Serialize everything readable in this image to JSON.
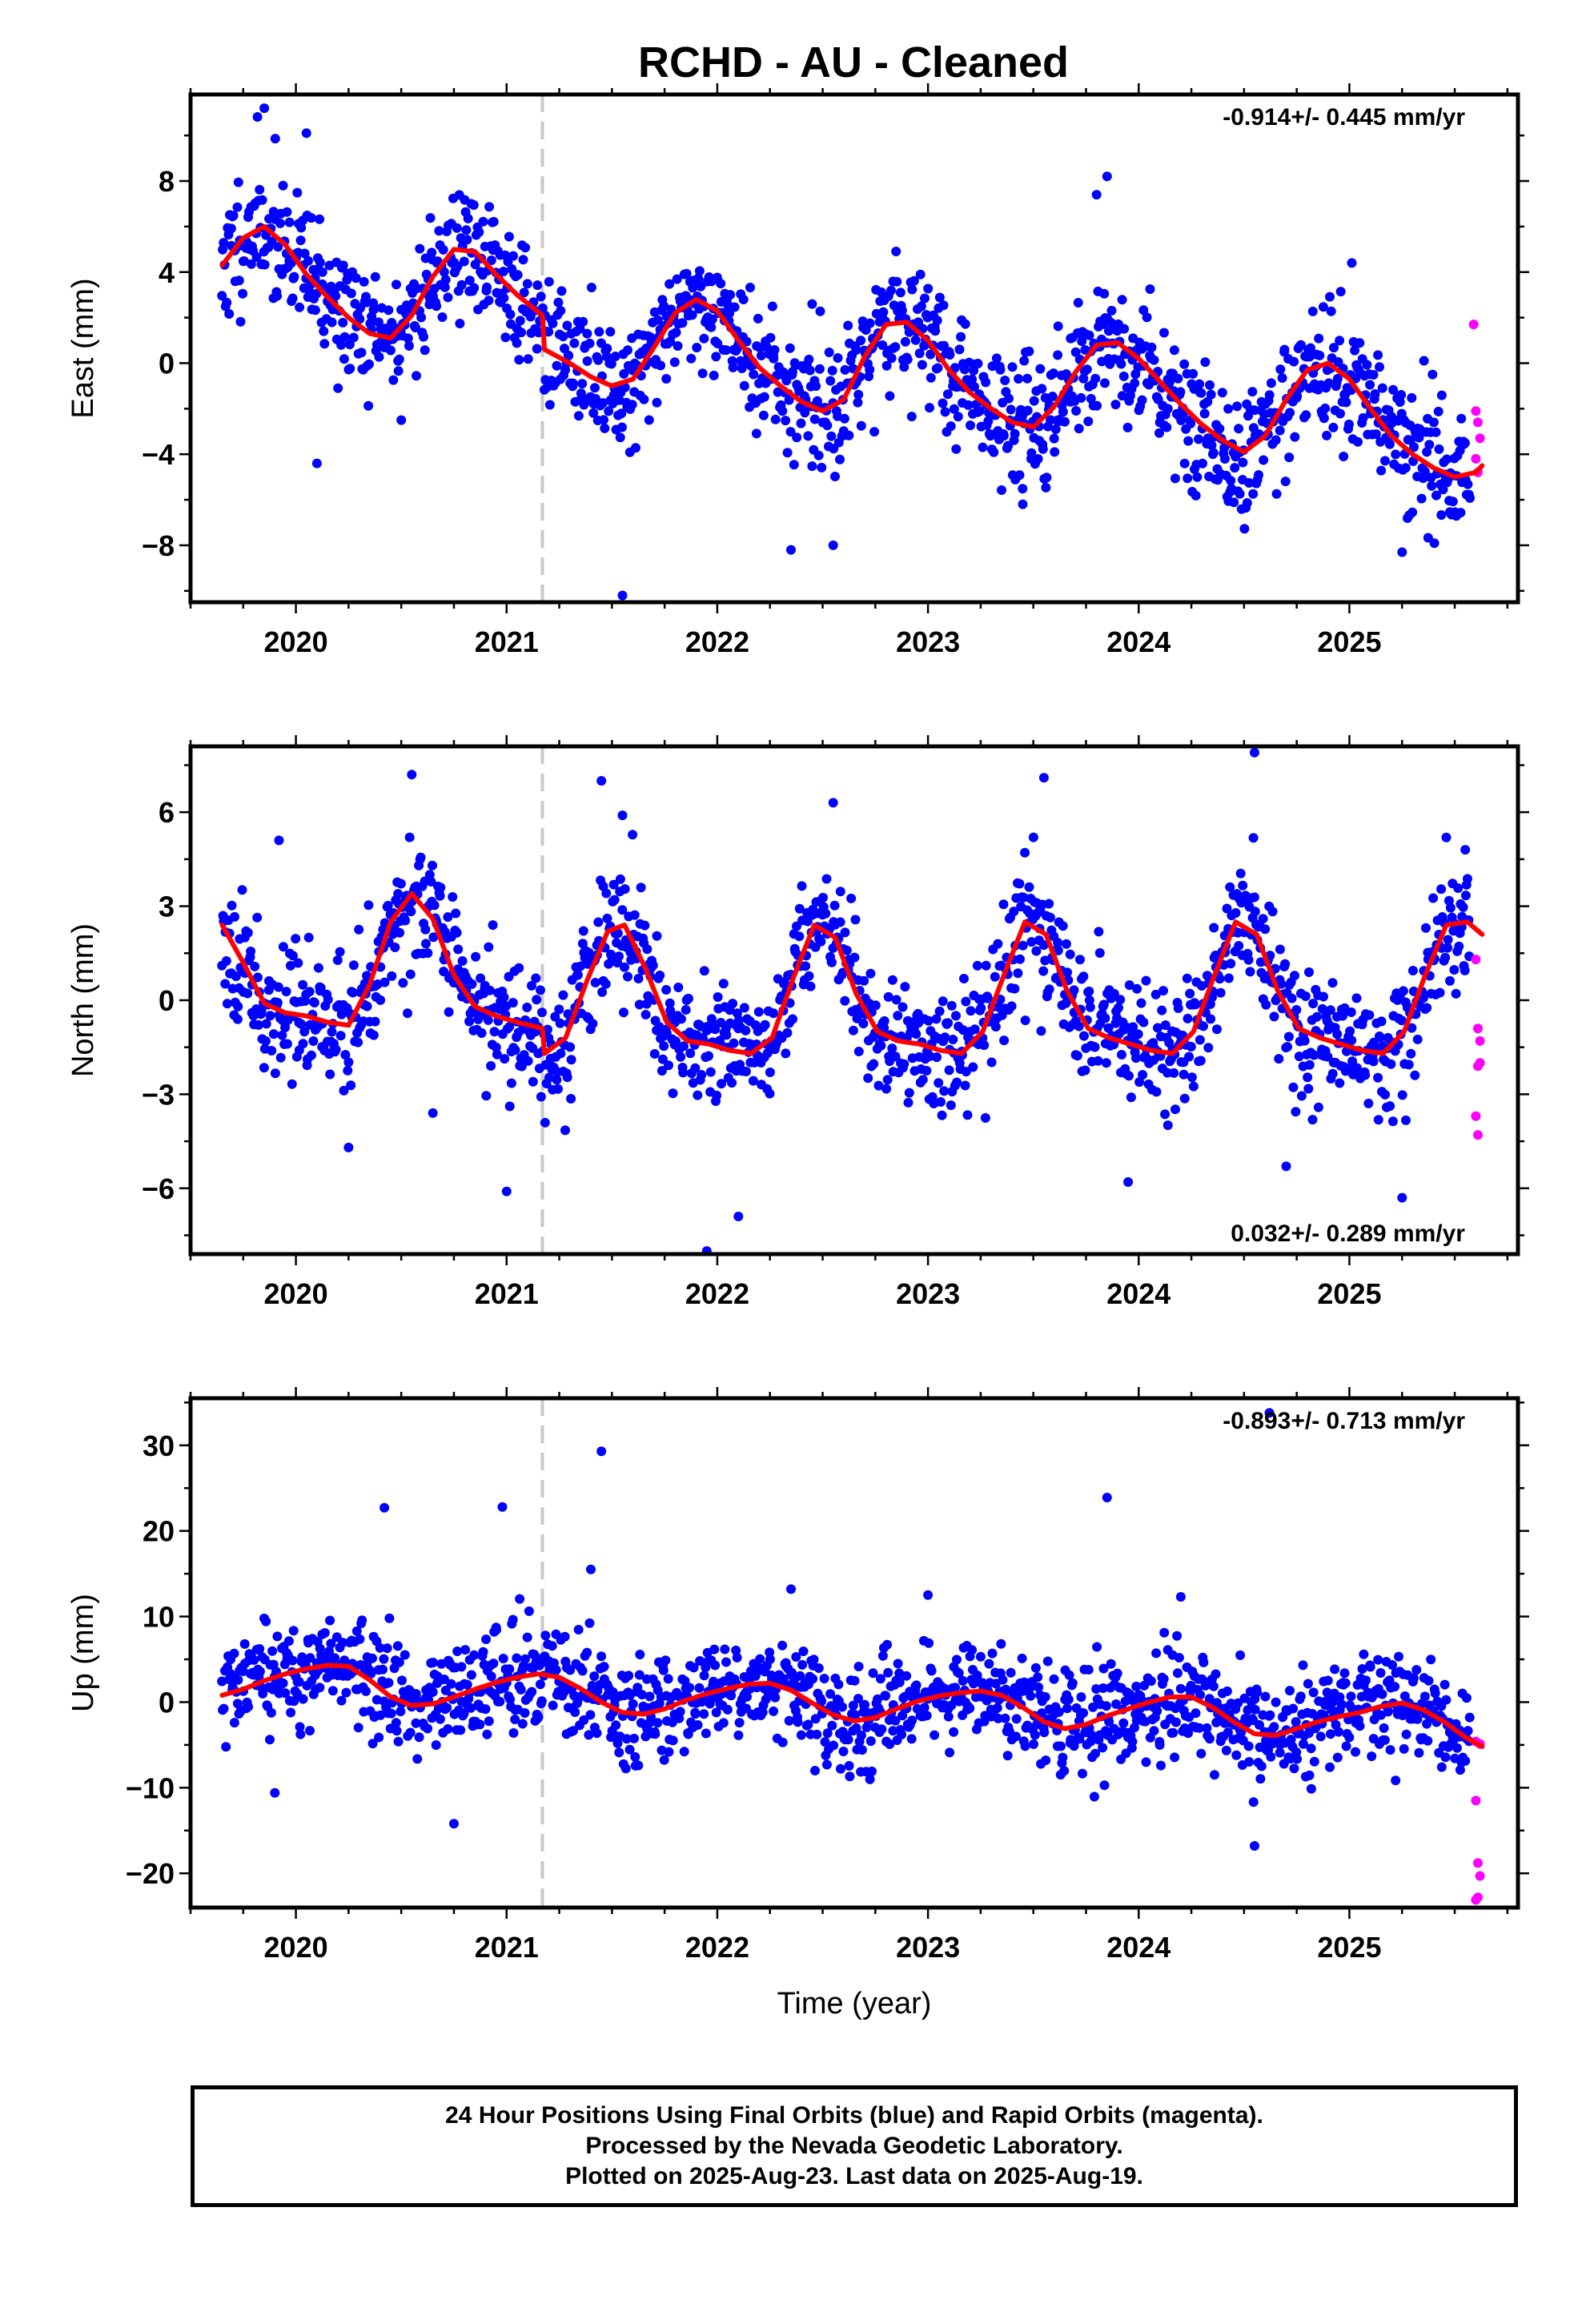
{
  "title": "RCHD  - AU - Cleaned",
  "colors": {
    "final_orbits": "#0000ff",
    "rapid_orbits": "#ff00ff",
    "model": "#ff0000",
    "event_line": "#c8c8c8"
  },
  "footer": {
    "lines": [
      "24 Hour Positions Using Final Orbits (blue) and Rapid Orbits (magenta).",
      "Processed by the Nevada Geodetic Laboratory.",
      "Plotted on 2025-Aug-23. Last data on 2025-Aug-19."
    ]
  },
  "chart_data": [
    {
      "type": "scatter",
      "panel": "east",
      "ylabel": "East (mm)",
      "xlabel": "",
      "rate_label": "-0.914+/- 0.445 mm/yr",
      "rate_label_position": "top-right",
      "xlim": [
        2019.5,
        2025.8
      ],
      "ylim": [
        -10.5,
        11.8
      ],
      "x_ticks": [
        2020,
        2021,
        2022,
        2023,
        2024,
        2025
      ],
      "y_ticks": [
        -8,
        -4,
        0,
        4,
        8
      ],
      "y_tick_labels": [
        "−8",
        "−4",
        "0",
        "4",
        "8"
      ],
      "event_line_x": 2021.17,
      "grid": false,
      "model_curve": {
        "name": "model",
        "x": [
          2019.65,
          2019.75,
          2019.85,
          2019.95,
          2020.05,
          2020.15,
          2020.25,
          2020.35,
          2020.45,
          2020.55,
          2020.65,
          2020.75,
          2020.85,
          2020.95,
          2021.05,
          2021.17,
          2021.18,
          2021.3,
          2021.4,
          2021.5,
          2021.6,
          2021.7,
          2021.8,
          2021.9,
          2022.0,
          2022.1,
          2022.2,
          2022.3,
          2022.4,
          2022.5,
          2022.6,
          2022.7,
          2022.8,
          2022.9,
          2023.0,
          2023.1,
          2023.2,
          2023.3,
          2023.4,
          2023.5,
          2023.6,
          2023.7,
          2023.8,
          2023.9,
          2024.0,
          2024.1,
          2024.2,
          2024.3,
          2024.4,
          2024.5,
          2024.6,
          2024.7,
          2024.8,
          2024.9,
          2025.0,
          2025.1,
          2025.2,
          2025.3,
          2025.4,
          2025.5,
          2025.6,
          2025.63
        ],
        "y": [
          4.3,
          5.5,
          6.0,
          5.2,
          3.9,
          2.9,
          2.0,
          1.3,
          1.1,
          2.1,
          3.8,
          5.0,
          4.9,
          3.9,
          3.0,
          2.1,
          0.6,
          0.0,
          -0.6,
          -1.0,
          -0.7,
          0.7,
          2.2,
          2.8,
          2.3,
          1.0,
          -0.2,
          -1.0,
          -1.7,
          -2.1,
          -1.6,
          0.3,
          1.7,
          1.8,
          1.0,
          -0.3,
          -1.3,
          -2.0,
          -2.6,
          -2.8,
          -1.9,
          -0.4,
          0.8,
          0.9,
          0.2,
          -0.8,
          -1.8,
          -2.7,
          -3.4,
          -3.9,
          -3.2,
          -1.6,
          -0.3,
          0.0,
          -0.7,
          -2.0,
          -3.2,
          -4.0,
          -4.6,
          -5.0,
          -4.8,
          -4.5
        ]
      },
      "rapid_points": {
        "x": [
          2025.59,
          2025.6,
          2025.61,
          2025.62,
          2025.6,
          2025.61
        ],
        "y": [
          1.7,
          -2.1,
          -2.6,
          -3.3,
          -4.2,
          -4.8
        ]
      },
      "scatter_generation": {
        "x_start": 2019.65,
        "x_end": 2025.57,
        "count": 1400,
        "noise_sd": 1.4,
        "seed": 11,
        "outliers": [
          [
            2019.85,
            11.2
          ],
          [
            2020.05,
            10.1
          ],
          [
            2020.1,
            -4.4
          ],
          [
            2021.55,
            -10.2
          ],
          [
            2022.35,
            -8.2
          ],
          [
            2022.55,
            -8.0
          ],
          [
            2023.8,
            7.4
          ],
          [
            2023.85,
            8.2
          ],
          [
            2025.25,
            -8.3
          ],
          [
            2020.5,
            -2.5
          ],
          [
            2022.45,
            2.6
          ],
          [
            2023.45,
            -6.2
          ]
        ]
      }
    },
    {
      "type": "scatter",
      "panel": "north",
      "ylabel": "North (mm)",
      "xlabel": "",
      "rate_label": "0.032+/- 0.289 mm/yr",
      "rate_label_position": "bottom-right",
      "xlim": [
        2019.5,
        2025.8
      ],
      "ylim": [
        -8.1,
        8.1
      ],
      "x_ticks": [
        2020,
        2021,
        2022,
        2023,
        2024,
        2025
      ],
      "y_ticks": [
        -6,
        -3,
        0,
        3,
        6
      ],
      "y_tick_labels": [
        "−6",
        "−3",
        "0",
        "3",
        "6"
      ],
      "event_line_x": 2021.17,
      "grid": false,
      "model_curve": {
        "name": "model",
        "x": [
          2019.65,
          2019.75,
          2019.85,
          2019.95,
          2020.05,
          2020.15,
          2020.25,
          2020.35,
          2020.45,
          2020.55,
          2020.65,
          2020.75,
          2020.85,
          2020.95,
          2021.05,
          2021.17,
          2021.18,
          2021.28,
          2021.38,
          2021.48,
          2021.56,
          2021.66,
          2021.76,
          2021.86,
          2021.96,
          2022.06,
          2022.16,
          2022.26,
          2022.36,
          2022.46,
          2022.56,
          2022.66,
          2022.76,
          2022.86,
          2022.96,
          2023.06,
          2023.16,
          2023.26,
          2023.36,
          2023.46,
          2023.56,
          2023.66,
          2023.76,
          2023.86,
          2023.96,
          2024.06,
          2024.16,
          2024.26,
          2024.36,
          2024.46,
          2024.56,
          2024.66,
          2024.76,
          2024.86,
          2024.96,
          2025.06,
          2025.16,
          2025.26,
          2025.36,
          2025.46,
          2025.56,
          2025.63
        ],
        "y": [
          2.4,
          1.2,
          -0.1,
          -0.4,
          -0.5,
          -0.7,
          -0.8,
          0.5,
          2.5,
          3.4,
          2.6,
          0.8,
          -0.2,
          -0.5,
          -0.7,
          -0.9,
          -1.7,
          -1.2,
          0.6,
          2.2,
          2.4,
          1.0,
          -0.7,
          -1.3,
          -1.4,
          -1.6,
          -1.7,
          -1.2,
          0.7,
          2.4,
          2.0,
          0.2,
          -1.0,
          -1.3,
          -1.4,
          -1.6,
          -1.7,
          -1.0,
          0.8,
          2.5,
          2.1,
          0.3,
          -0.9,
          -1.2,
          -1.4,
          -1.6,
          -1.7,
          -1.0,
          0.8,
          2.5,
          2.1,
          0.3,
          -0.9,
          -1.2,
          -1.4,
          -1.6,
          -1.7,
          -1.0,
          0.8,
          2.4,
          2.5,
          2.1
        ]
      },
      "rapid_points": {
        "x": [
          2025.6,
          2025.61,
          2025.62,
          2025.61,
          2025.62,
          2025.6,
          2025.61
        ],
        "y": [
          1.3,
          -0.9,
          -1.3,
          -2.1,
          -2.0,
          -3.7,
          -4.3
        ]
      },
      "scatter_generation": {
        "x_start": 2019.65,
        "x_end": 2025.57,
        "count": 1400,
        "noise_sd": 1.0,
        "seed": 23,
        "outliers": [
          [
            2019.92,
            5.1
          ],
          [
            2020.25,
            -4.7
          ],
          [
            2020.55,
            7.2
          ],
          [
            2021.0,
            -6.1
          ],
          [
            2021.45,
            7.0
          ],
          [
            2021.55,
            5.9
          ],
          [
            2021.95,
            -8.0
          ],
          [
            2022.1,
            -6.9
          ],
          [
            2022.55,
            6.3
          ],
          [
            2023.55,
            7.1
          ],
          [
            2023.95,
            -5.8
          ],
          [
            2024.55,
            7.9
          ],
          [
            2024.7,
            -5.3
          ],
          [
            2025.25,
            -6.3
          ],
          [
            2025.55,
            4.8
          ],
          [
            2020.65,
            -3.6
          ]
        ]
      }
    },
    {
      "type": "scatter",
      "panel": "up",
      "ylabel": "Up (mm)",
      "xlabel": "Time (year)",
      "rate_label": "-0.893+/- 0.713 mm/yr",
      "rate_label_position": "top-right",
      "xlim": [
        2019.5,
        2025.8
      ],
      "ylim": [
        -24.0,
        35.5
      ],
      "x_ticks": [
        2020,
        2021,
        2022,
        2023,
        2024,
        2025
      ],
      "y_ticks": [
        -20,
        -10,
        0,
        10,
        20,
        30
      ],
      "y_tick_labels": [
        "−20",
        "−10",
        "0",
        "10",
        "20",
        "30"
      ],
      "event_line_x": 2021.17,
      "grid": false,
      "model_curve": {
        "name": "model",
        "x": [
          2019.65,
          2019.75,
          2019.85,
          2019.95,
          2020.05,
          2020.15,
          2020.25,
          2020.35,
          2020.45,
          2020.55,
          2020.65,
          2020.75,
          2020.85,
          2020.95,
          2021.05,
          2021.15,
          2021.25,
          2021.35,
          2021.45,
          2021.55,
          2021.65,
          2021.75,
          2021.85,
          2021.95,
          2022.05,
          2022.15,
          2022.25,
          2022.35,
          2022.45,
          2022.55,
          2022.65,
          2022.75,
          2022.85,
          2022.95,
          2023.05,
          2023.15,
          2023.25,
          2023.35,
          2023.45,
          2023.55,
          2023.65,
          2023.75,
          2023.85,
          2023.95,
          2024.05,
          2024.15,
          2024.25,
          2024.35,
          2024.45,
          2024.55,
          2024.65,
          2024.75,
          2024.85,
          2024.95,
          2025.05,
          2025.15,
          2025.25,
          2025.35,
          2025.45,
          2025.55,
          2025.63
        ],
        "y": [
          0.8,
          1.5,
          2.5,
          3.3,
          3.9,
          4.3,
          4.2,
          2.6,
          0.6,
          -0.4,
          -0.2,
          0.6,
          1.5,
          2.3,
          2.9,
          3.3,
          2.9,
          1.6,
          0.0,
          -1.2,
          -1.4,
          -0.8,
          0.2,
          1.0,
          1.6,
          2.1,
          2.2,
          1.4,
          -0.1,
          -1.5,
          -2.2,
          -1.8,
          -0.8,
          0.1,
          0.7,
          1.1,
          1.3,
          0.8,
          -0.6,
          -2.3,
          -3.1,
          -2.6,
          -1.6,
          -0.8,
          0.0,
          0.6,
          0.6,
          -0.6,
          -2.3,
          -3.7,
          -3.9,
          -3.1,
          -2.3,
          -1.7,
          -1.2,
          -0.5,
          -0.1,
          -0.9,
          -2.3,
          -4.1,
          -5.2
        ]
      },
      "rapid_points": {
        "x": [
          2025.6,
          2025.62,
          2025.6,
          2025.61,
          2025.62,
          2025.61,
          2025.6
        ],
        "y": [
          -4.6,
          -4.9,
          -11.5,
          -18.8,
          -20.3,
          -22.8,
          -23.1
        ]
      },
      "scatter_generation": {
        "x_start": 2019.65,
        "x_end": 2025.57,
        "count": 1400,
        "noise_sd": 3.0,
        "seed": 37,
        "outliers": [
          [
            2020.42,
            22.7
          ],
          [
            2020.98,
            22.8
          ],
          [
            2021.45,
            29.3
          ],
          [
            2023.85,
            23.9
          ],
          [
            2021.4,
            15.5
          ],
          [
            2020.75,
            -14.2
          ],
          [
            2019.9,
            -10.6
          ],
          [
            2024.55,
            -16.8
          ],
          [
            2024.62,
            33.8
          ],
          [
            2022.35,
            13.2
          ],
          [
            2024.2,
            12.3
          ],
          [
            2023.0,
            12.5
          ]
        ]
      }
    }
  ]
}
